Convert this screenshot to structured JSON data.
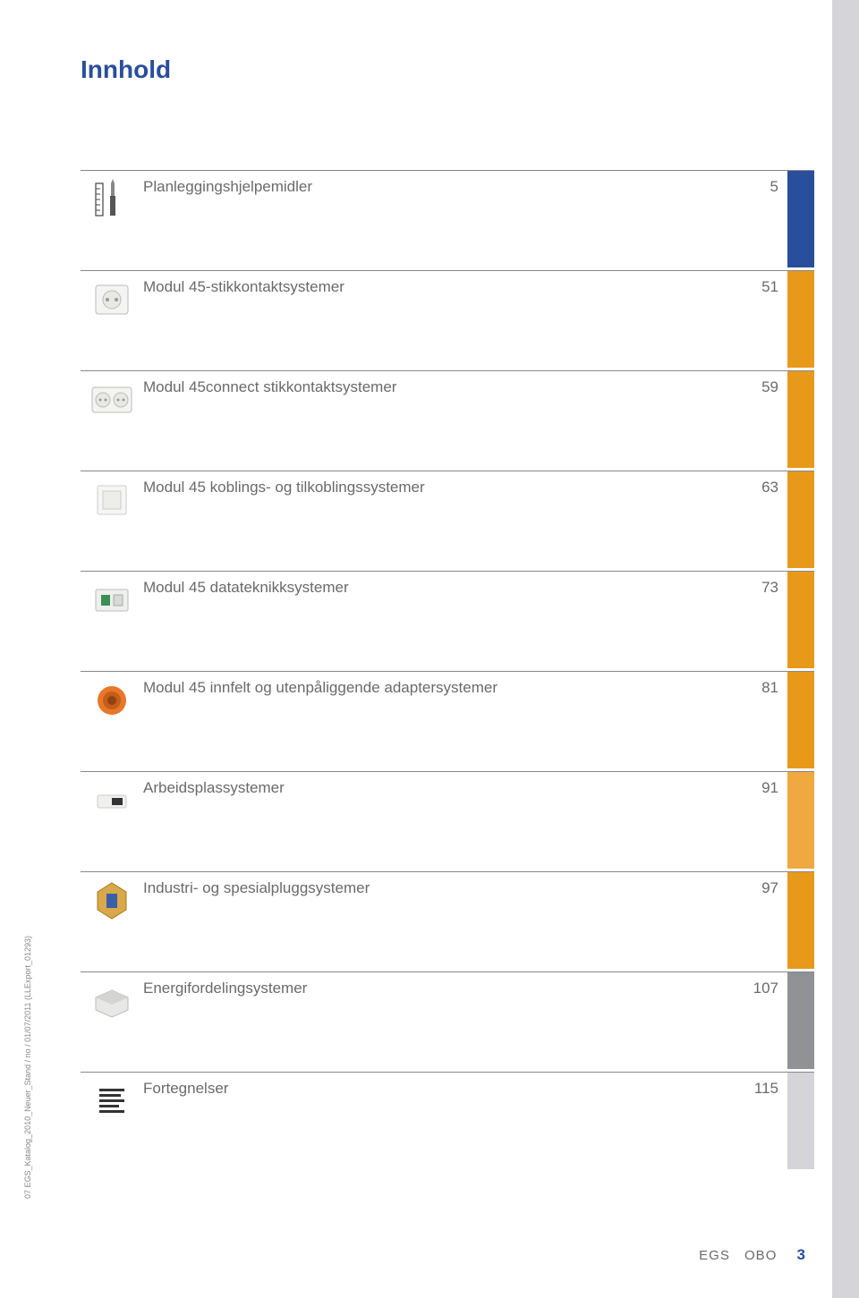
{
  "title": "Innhold",
  "side_text": "07 EGS_Katalog_2010_Neuer_Stand / no / 01/07/2011 (LLExport_01293)",
  "footer": {
    "left": "EGS",
    "mid": "OBO",
    "num": "3"
  },
  "colors": {
    "blue": "#294e9b",
    "orange": "#e8991a",
    "orange_light": "#f0a840",
    "grey_dark": "#909295",
    "grey_light": "#d4d4d9",
    "text": "#6a6a6a"
  },
  "items": [
    {
      "label": "Planleggingshjelpemidler",
      "page": "5",
      "bar": "bar-blue",
      "icon": "ruler-screwdriver"
    },
    {
      "label": "Modul 45-stikkontaktsystemer",
      "page": "51",
      "bar": "bar-orange",
      "icon": "outlet-single"
    },
    {
      "label": "Modul 45connect stikkontaktsystemer",
      "page": "59",
      "bar": "bar-orange",
      "icon": "outlet-double"
    },
    {
      "label": "Modul 45 koblings- og tilkoblingssystemer",
      "page": "63",
      "bar": "bar-orange",
      "icon": "switch-plate"
    },
    {
      "label": "Modul 45 datateknikksystemer",
      "page": "73",
      "bar": "bar-orange",
      "icon": "data-jack"
    },
    {
      "label": "Modul 45 innfelt og utenpåliggende adaptersystemer",
      "page": "81",
      "bar": "bar-orange",
      "icon": "flush-box"
    },
    {
      "label": "Arbeidsplassystemer",
      "page": "91",
      "bar": "bar-orange-light",
      "icon": "desk-box"
    },
    {
      "label": "Industri- og spesialpluggsystemer",
      "page": "97",
      "bar": "bar-orange",
      "icon": "industrial-plug"
    },
    {
      "label": "Energifordelingsystemer",
      "page": "107",
      "bar": "bar-grey-dark",
      "icon": "distribution-box"
    },
    {
      "label": "Fortegnelser",
      "page": "115",
      "bar": "bar-grey-light",
      "icon": "list-lines"
    }
  ]
}
